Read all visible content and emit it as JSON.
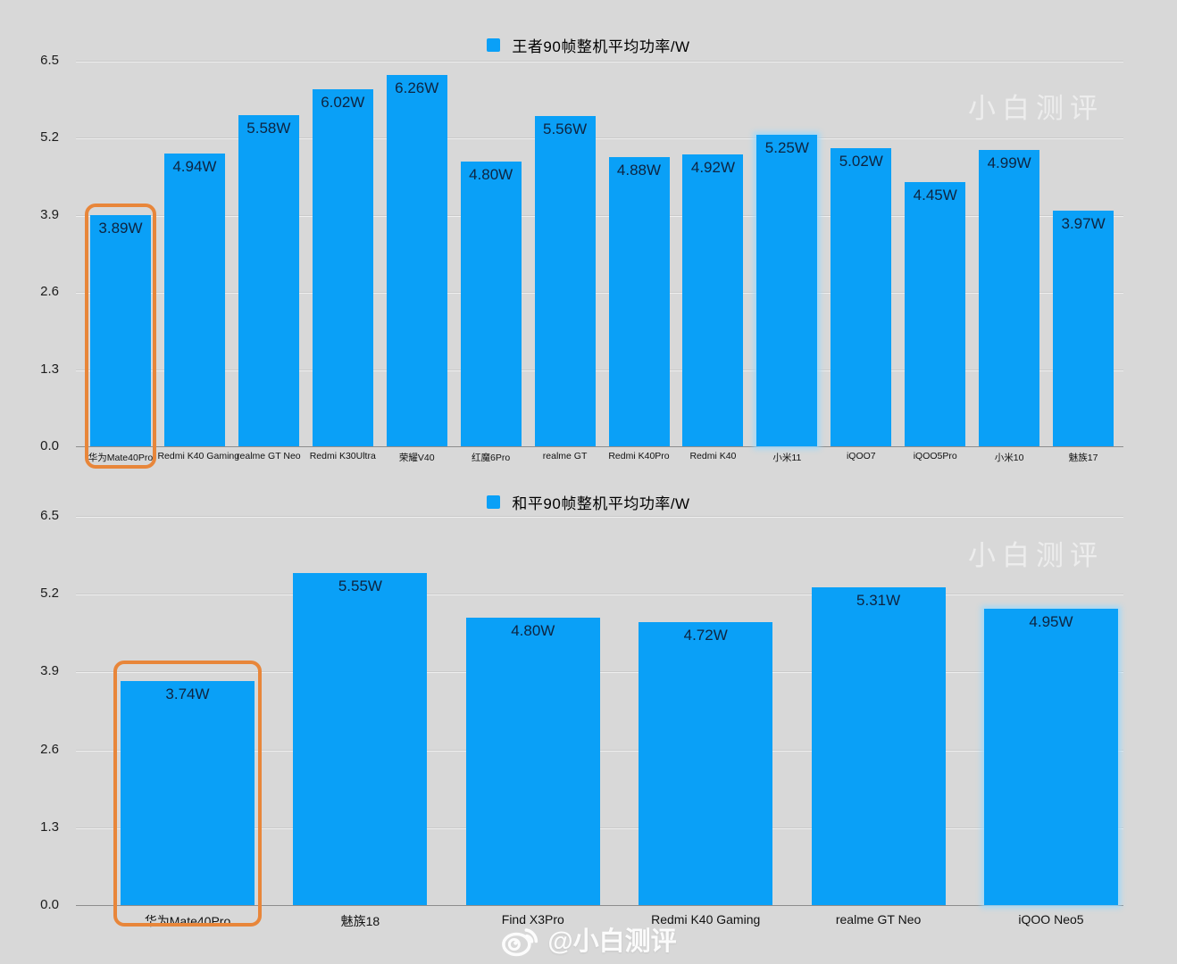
{
  "watermark": {
    "text": "小白测评"
  },
  "footer": {
    "handle": "@小白测评",
    "icon": "weibo-icon"
  },
  "colors": {
    "background": "#d8d8d8",
    "bar": "#0aa0f7",
    "highlight_outline": "#e8863a",
    "value_label": "#0e2440",
    "axis_label": "#1c1c1c"
  },
  "chart_data": [
    {
      "type": "bar",
      "title": "王者90帧整机平均功率/W",
      "legend_position": "top",
      "xlabel": "",
      "ylabel": "",
      "ylim": [
        0,
        6.5
      ],
      "yticks": [
        "0.0",
        "1.3",
        "2.6",
        "3.9",
        "5.2",
        "6.5"
      ],
      "grid": true,
      "categories": [
        "华为Mate40Pro",
        "Redmi K40 Gaming",
        "realme GT Neo",
        "Redmi K30Ultra",
        "荣耀V40",
        "红魔6Pro",
        "realme GT",
        "Redmi K40Pro",
        "Redmi K40",
        "小米11",
        "iQOO7",
        "iQOO5Pro",
        "小米10",
        "魅族17"
      ],
      "values": [
        3.89,
        4.94,
        5.58,
        6.02,
        6.26,
        4.8,
        5.56,
        4.88,
        4.92,
        5.25,
        5.02,
        4.45,
        4.99,
        3.97
      ],
      "value_labels": [
        "3.89W",
        "4.94W",
        "5.58W",
        "6.02W",
        "6.26W",
        "4.80W",
        "5.56W",
        "4.88W",
        "4.92W",
        "5.25W",
        "5.02W",
        "4.45W",
        "4.99W",
        "3.97W"
      ],
      "highlighted_category": "华为Mate40Pro",
      "highlight_index": 0,
      "glow_indices": [
        9
      ]
    },
    {
      "type": "bar",
      "title": "和平90帧整机平均功率/W",
      "legend_position": "top",
      "xlabel": "",
      "ylabel": "",
      "ylim": [
        0,
        6.5
      ],
      "yticks": [
        "0.0",
        "1.3",
        "2.6",
        "3.9",
        "5.2",
        "6.5"
      ],
      "grid": true,
      "categories": [
        "华为Mate40Pro",
        "魅族18",
        "Find X3Pro",
        "Redmi K40 Gaming",
        "realme GT Neo",
        "iQOO Neo5"
      ],
      "values": [
        3.74,
        5.55,
        4.8,
        4.72,
        5.31,
        4.95
      ],
      "value_labels": [
        "3.74W",
        "5.55W",
        "4.80W",
        "4.72W",
        "5.31W",
        "4.95W"
      ],
      "highlighted_category": "华为Mate40Pro",
      "highlight_index": 0,
      "glow_indices": [
        5
      ]
    }
  ]
}
